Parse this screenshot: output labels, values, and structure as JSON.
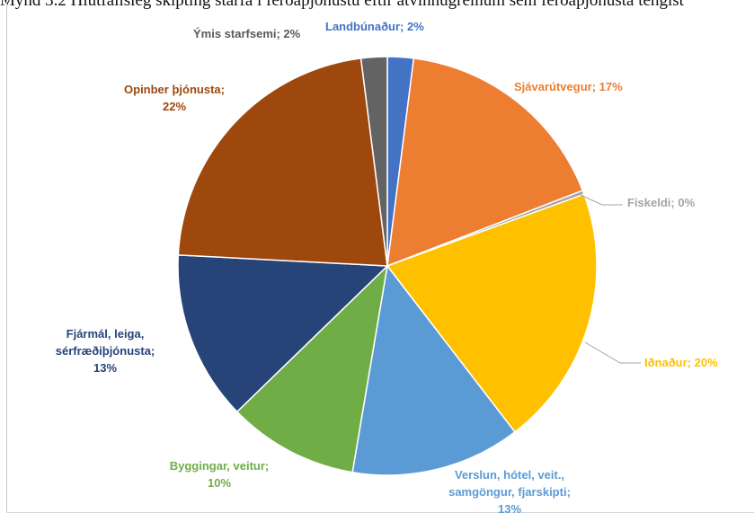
{
  "header_text": "Mynd 3.2 Hlutfallsleg skipting starfa í ferðaþjónustu eftir atvinnugreinum sem ferðaþjónusta tengist",
  "chart_data": {
    "type": "pie",
    "title": "",
    "slices": [
      {
        "name": "Landbúnaður",
        "value": 2,
        "label_lines": [
          "Landbúnaður; 2%"
        ],
        "color": "#4472C4",
        "label_color": "#4472C4"
      },
      {
        "name": "Sjávarútvegur",
        "value": 17,
        "label_lines": [
          "Sjávarútvegur; 17%"
        ],
        "color": "#ED7D31",
        "label_color": "#ED7D31"
      },
      {
        "name": "Fiskeldi",
        "value": 0.3,
        "label_lines": [
          "Fiskeldi; 0%"
        ],
        "color": "#A5A5A5",
        "label_color": "#A5A5A5"
      },
      {
        "name": "Iðnaður",
        "value": 20,
        "label_lines": [
          "Iðnaður; 20%"
        ],
        "color": "#FFC000",
        "label_color": "#FFC000"
      },
      {
        "name": "Verslun, hótel, veit., samgöngur, fjarskipti",
        "value": 13,
        "label_lines": [
          "Verslun, hótel, veit.,",
          "samgöngur, fjarskipti;",
          "13%"
        ],
        "color": "#5B9BD5",
        "label_color": "#5B9BD5"
      },
      {
        "name": "Byggingar, veitur",
        "value": 10,
        "label_lines": [
          "Byggingar, veitur;",
          "10%"
        ],
        "color": "#70AD47",
        "label_color": "#70AD47"
      },
      {
        "name": "Fjármál, leiga, sérfræðiþjónusta",
        "value": 13,
        "label_lines": [
          "Fjármál, leiga,",
          "sérfræðiþjónusta;",
          "13%"
        ],
        "color": "#264478",
        "label_color": "#264478"
      },
      {
        "name": "Opinber þjónusta",
        "value": 22,
        "label_lines": [
          "Opinber þjónusta;",
          "22%"
        ],
        "color": "#9E480E",
        "label_color": "#9E480E"
      },
      {
        "name": "Ýmis starfsemi",
        "value": 2,
        "label_lines": [
          "Ýmis starfsemi; 2%"
        ],
        "color": "#636363",
        "label_color": "#595959"
      }
    ]
  }
}
